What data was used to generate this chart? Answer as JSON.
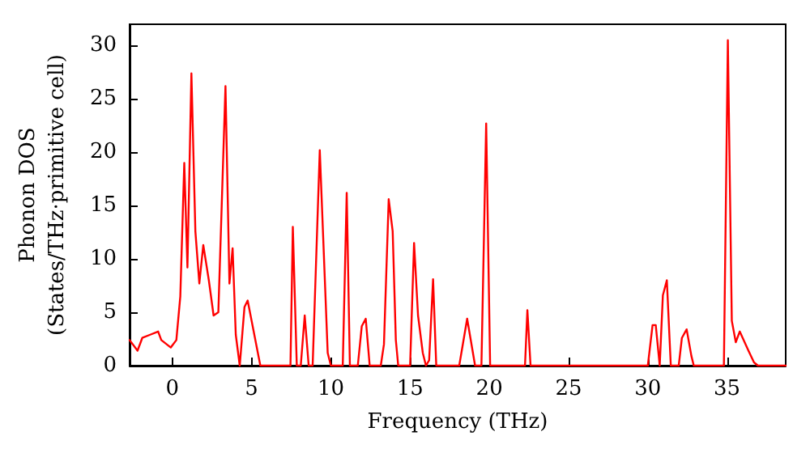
{
  "chart_data": {
    "type": "line",
    "xlabel": "Frequency (THz)",
    "ylabel": "Phonon DOS\n(States/THz·primitive cell)",
    "xlim": [
      -2.7,
      38.7
    ],
    "xticks": [
      0,
      5,
      10,
      15,
      20,
      25,
      30,
      35
    ],
    "ylim": [
      0,
      32
    ],
    "yticks": [
      0,
      5,
      10,
      15,
      20,
      25,
      30
    ],
    "grid": false,
    "marker": "none",
    "line_style": "solid",
    "x": [
      -2.7,
      -2.2,
      -1.9,
      -1.4,
      -0.9,
      -0.7,
      -0.1,
      0.25,
      0.5,
      0.75,
      0.95,
      1.2,
      1.45,
      1.7,
      1.95,
      2.3,
      2.6,
      2.9,
      3.35,
      3.6,
      3.8,
      4.0,
      4.25,
      4.55,
      4.75,
      5.55,
      7.45,
      7.6,
      7.85,
      8.1,
      8.35,
      8.6,
      8.85,
      9.3,
      9.8,
      10.0,
      10.75,
      11.0,
      11.2,
      11.7,
      11.95,
      12.2,
      12.45,
      13.15,
      13.35,
      13.65,
      13.9,
      14.1,
      14.25,
      15.0,
      15.25,
      15.5,
      15.8,
      16.0,
      16.2,
      16.45,
      16.65,
      18.1,
      18.6,
      19.1,
      19.5,
      19.8,
      20.05,
      22.25,
      22.4,
      22.6,
      30.0,
      30.3,
      30.5,
      30.75,
      30.95,
      31.2,
      31.45,
      31.95,
      32.15,
      32.45,
      32.75,
      32.9,
      34.8,
      35.05,
      35.3,
      35.55,
      35.8,
      36.35,
      36.7,
      36.95,
      38.7
    ],
    "series": [
      {
        "color": "#ff0000",
        "values": [
          2.4,
          1.4,
          2.6,
          2.9,
          3.2,
          2.4,
          1.7,
          2.4,
          6.5,
          19,
          9.2,
          27.4,
          12.6,
          7.7,
          11.3,
          8.0,
          4.7,
          5.0,
          26.2,
          7.7,
          11.0,
          2.9,
          0,
          5.5,
          6.1,
          0,
          0,
          13.0,
          0,
          0,
          4.7,
          0,
          0,
          20.2,
          1.2,
          0,
          0,
          16.2,
          0,
          0,
          3.7,
          4.4,
          0,
          0,
          2.0,
          15.6,
          12.6,
          2.4,
          0,
          0,
          11.5,
          4.7,
          1.2,
          0,
          0.5,
          8.1,
          0,
          0,
          4.4,
          0,
          0,
          22.7,
          0,
          0,
          5.2,
          0,
          0,
          3.8,
          3.8,
          0,
          6.6,
          8.0,
          0,
          0,
          2.6,
          3.4,
          0.9,
          0,
          0,
          30.5,
          4.2,
          2.2,
          3.2,
          1.4,
          0.3,
          0,
          0
        ]
      }
    ]
  }
}
